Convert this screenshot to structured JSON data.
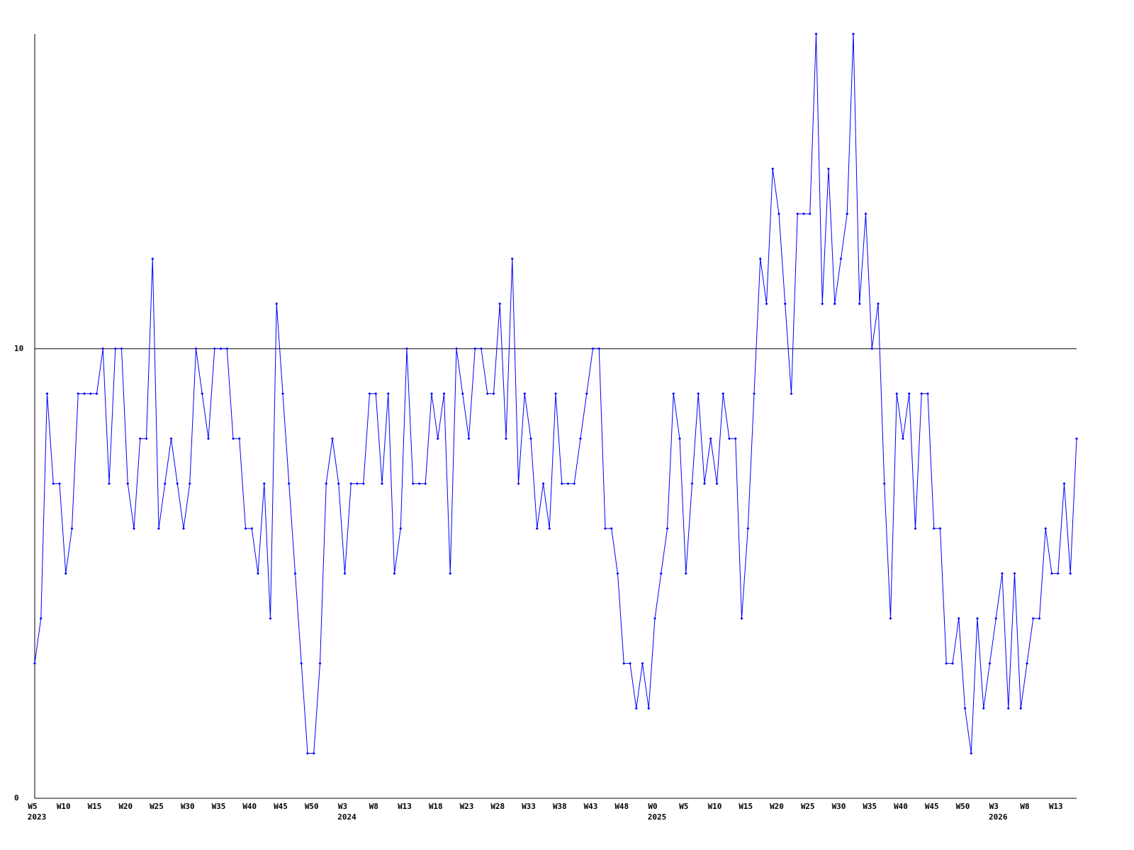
{
  "chart_data": {
    "type": "line",
    "categories": [
      "W5",
      null,
      null,
      null,
      null,
      "W10",
      null,
      null,
      null,
      null,
      "W15",
      null,
      null,
      null,
      null,
      "W20",
      null,
      null,
      null,
      null,
      "W25",
      null,
      null,
      null,
      null,
      "W30",
      null,
      null,
      null,
      null,
      "W35",
      null,
      null,
      null,
      null,
      "W40",
      null,
      null,
      null,
      null,
      "W45",
      null,
      null,
      null,
      null,
      "W50",
      null,
      null,
      null,
      null,
      "W3",
      null,
      null,
      null,
      null,
      "W8",
      null,
      null,
      null,
      null,
      "W13",
      null,
      null,
      null,
      null,
      "W18",
      null,
      null,
      null,
      null,
      "W23",
      null,
      null,
      null,
      null,
      "W28",
      null,
      null,
      null,
      null,
      "W33",
      null,
      null,
      null,
      null,
      "W38",
      null,
      null,
      null,
      null,
      "W43",
      null,
      null,
      null,
      null,
      "W48",
      null,
      null,
      null,
      null,
      "W0",
      null,
      null,
      null,
      null,
      "W5",
      null,
      null,
      null,
      null,
      "W10",
      null,
      null,
      null,
      null,
      "W15",
      null,
      null,
      null,
      null,
      "W20",
      null,
      null,
      null,
      null,
      "W25",
      null,
      null,
      null,
      null,
      "W30",
      null,
      null,
      null,
      null,
      "W35",
      null,
      null,
      null,
      null,
      "W40",
      null,
      null,
      null,
      null,
      "W45",
      null,
      null,
      null,
      null,
      "W50",
      null,
      null,
      null,
      null,
      "W3",
      null,
      null,
      null,
      null,
      "W8",
      null,
      null,
      null,
      null,
      "W13",
      null,
      null,
      null
    ],
    "category_years": [
      "2023",
      null,
      null,
      null,
      null,
      null,
      null,
      null,
      null,
      null,
      null,
      null,
      null,
      null,
      null,
      null,
      null,
      null,
      null,
      null,
      null,
      null,
      null,
      null,
      null,
      null,
      null,
      null,
      null,
      null,
      null,
      null,
      null,
      null,
      null,
      null,
      null,
      null,
      null,
      null,
      null,
      null,
      null,
      null,
      null,
      null,
      null,
      null,
      null,
      null,
      "2024",
      null,
      null,
      null,
      null,
      null,
      null,
      null,
      null,
      null,
      null,
      null,
      null,
      null,
      null,
      null,
      null,
      null,
      null,
      null,
      null,
      null,
      null,
      null,
      null,
      null,
      null,
      null,
      null,
      null,
      null,
      null,
      null,
      null,
      null,
      null,
      null,
      null,
      null,
      null,
      null,
      null,
      null,
      null,
      null,
      null,
      null,
      null,
      null,
      null,
      "2025",
      null,
      null,
      null,
      null,
      null,
      null,
      null,
      null,
      null,
      null,
      null,
      null,
      null,
      null,
      null,
      null,
      null,
      null,
      null,
      null,
      null,
      null,
      null,
      null,
      null,
      null,
      null,
      null,
      null,
      null,
      null,
      null,
      null,
      null,
      null,
      null,
      null,
      null,
      null,
      null,
      null,
      null,
      null,
      null,
      null,
      null,
      null,
      null,
      null,
      null,
      null,
      null,
      null,
      null,
      "2026",
      null,
      null,
      null,
      null,
      null,
      null,
      null,
      null,
      null,
      null,
      null,
      null,
      null
    ],
    "series": [
      {
        "color": "#0000ff",
        "values": [
          3,
          4,
          9,
          7,
          7,
          5,
          6,
          9,
          9,
          9,
          9,
          10,
          7,
          10,
          10,
          7,
          6,
          8,
          8,
          12,
          6,
          7,
          8,
          7,
          6,
          7,
          10,
          9,
          8,
          10,
          10,
          10,
          8,
          8,
          6,
          6,
          5,
          7,
          4,
          11,
          9,
          7,
          5,
          3,
          1,
          1,
          3,
          7,
          8,
          7,
          5,
          7,
          7,
          7,
          9,
          9,
          7,
          9,
          5,
          6,
          10,
          7,
          7,
          7,
          9,
          8,
          9,
          5,
          10,
          9,
          8,
          10,
          10,
          9,
          9,
          11,
          8,
          12,
          7,
          9,
          8,
          6,
          7,
          6,
          9,
          7,
          7,
          7,
          8,
          9,
          10,
          10,
          6,
          6,
          5,
          3,
          3,
          2,
          3,
          2,
          4,
          5,
          6,
          9,
          8,
          5,
          7,
          9,
          7,
          8,
          7,
          9,
          8,
          8,
          4,
          6,
          9,
          12,
          11,
          14,
          13,
          11,
          9,
          13,
          13,
          13,
          17,
          11,
          14,
          11,
          12,
          13,
          17,
          11,
          13,
          10,
          11,
          7,
          4,
          9,
          8,
          9,
          6,
          9,
          9,
          6,
          6,
          3,
          3,
          4,
          2,
          1,
          4,
          2,
          3,
          4,
          5,
          2,
          5,
          2,
          3,
          4,
          4,
          6,
          5,
          5,
          7,
          5,
          8
        ]
      }
    ],
    "ylim": [
      0,
      17
    ],
    "yticks": [
      0,
      10
    ],
    "grid": true
  }
}
